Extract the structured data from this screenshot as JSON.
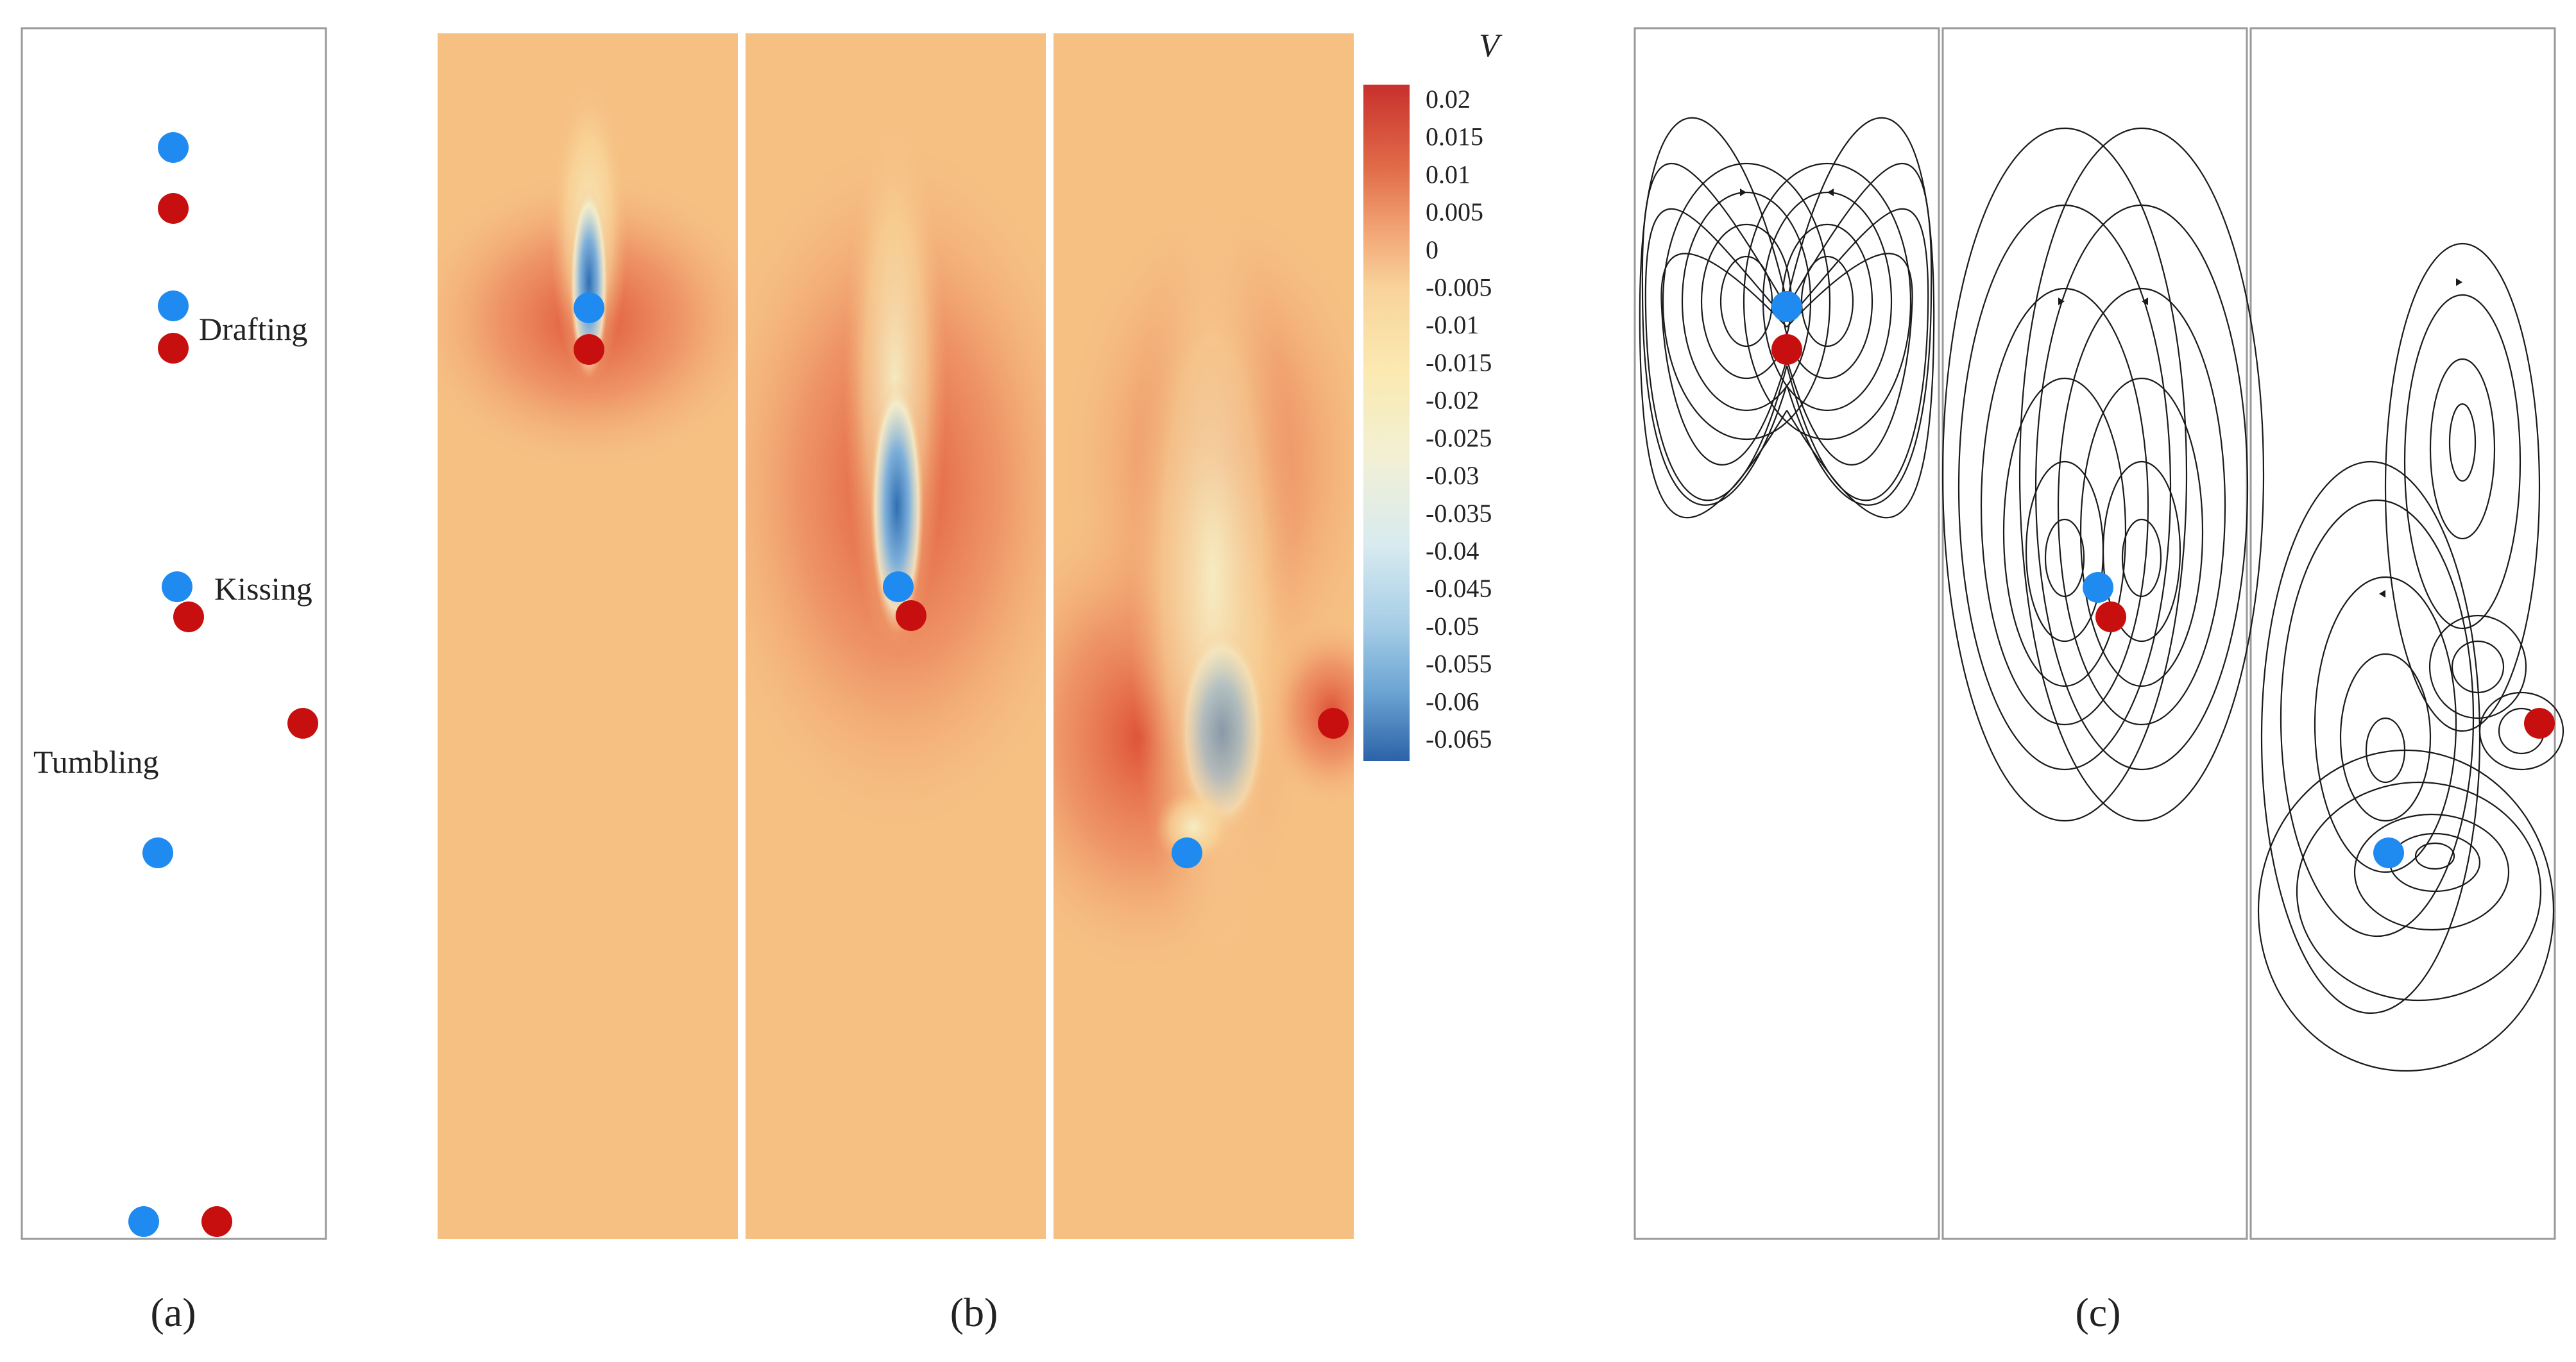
{
  "panel_a": {
    "caption": "(a)",
    "labels": {
      "drafting": "Drafting",
      "kissing": "Kissing",
      "tumbling": "Tumbling"
    }
  },
  "panel_b": {
    "caption": "(b)",
    "colorbar": {
      "title": "V",
      "ticks": [
        "0.02",
        "0.015",
        "0.01",
        "0.005",
        "0",
        "-0.005",
        "-0.01",
        "-0.015",
        "-0.02",
        "-0.025",
        "-0.03",
        "-0.035",
        "-0.04",
        "-0.045",
        "-0.05",
        "-0.055",
        "-0.06",
        "-0.065"
      ]
    }
  },
  "panel_c": {
    "caption": "(c)"
  },
  "colors": {
    "particle_blue": "#1f8bf0",
    "particle_red": "#c80f0f",
    "field_base": "#f6c083",
    "field_positive": "#d9523a",
    "field_negative": "#2f6fb3"
  }
}
